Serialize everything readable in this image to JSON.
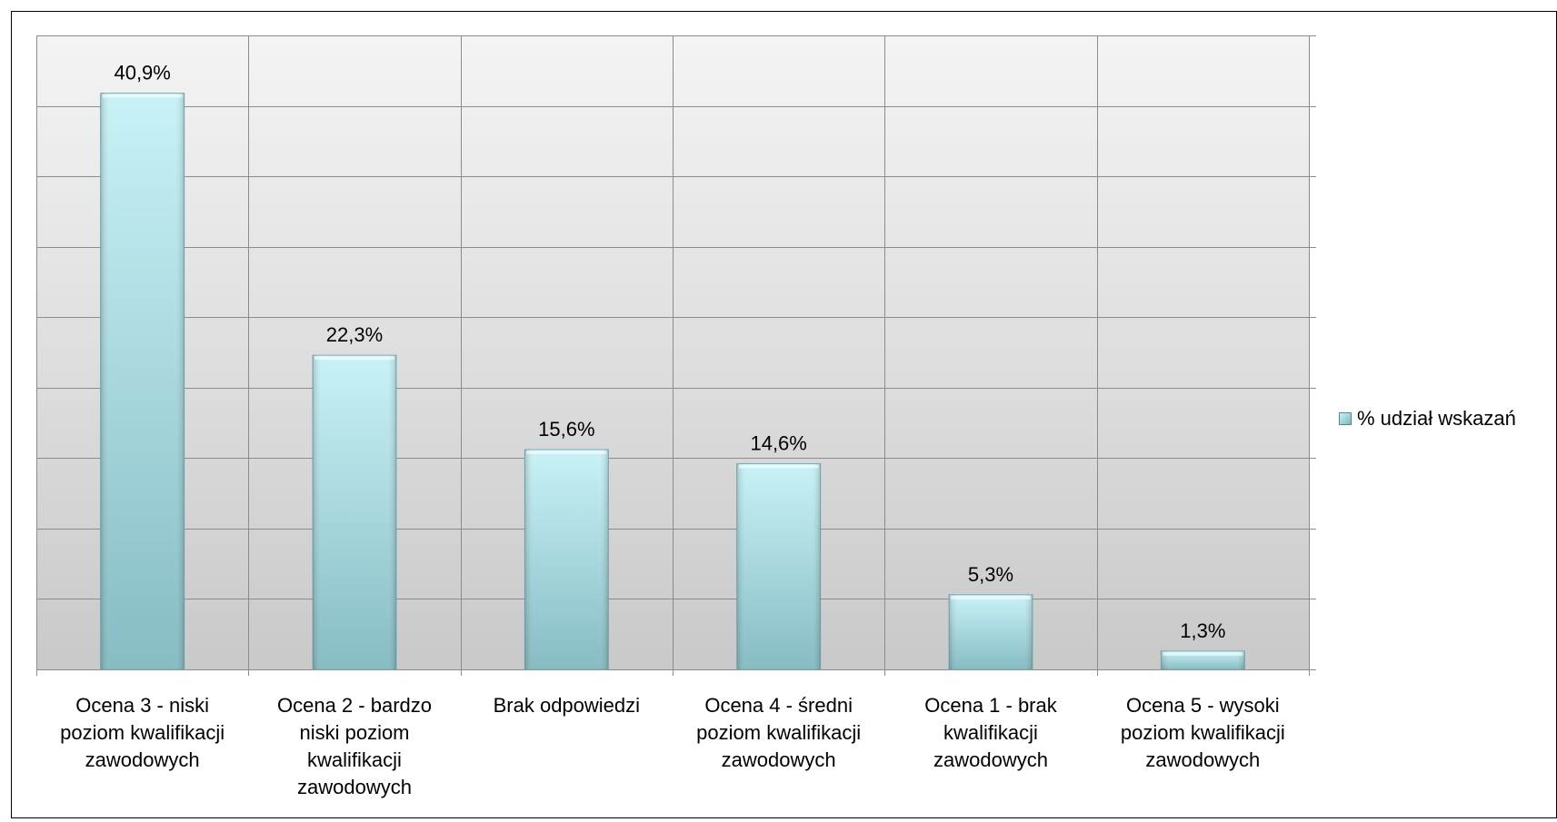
{
  "chart_data": {
    "type": "bar",
    "title": "",
    "xlabel": "",
    "ylabel": "",
    "ylim": [
      0,
      45
    ],
    "grid": true,
    "legend_position": "right",
    "categories": [
      "Ocena 3 - niski poziom kwalifikacji zawodowych",
      "Ocena 2 - bardzo niski poziom kwalifikacji zawodowych",
      "Brak odpowiedzi",
      "Ocena 4 - średni poziom kwalifikacji zawodowych",
      "Ocena 1 - brak kwalifikacji zawodowych",
      "Ocena 5 - wysoki poziom kwalifikacji zawodowych"
    ],
    "tick_labels": [
      [
        "Ocena 3 - niski",
        "poziom kwalifikacji",
        "zawodowych"
      ],
      [
        "Ocena 2 - bardzo",
        "niski poziom",
        "kwalifikacji",
        "zawodowych"
      ],
      [
        "Brak odpowiedzi"
      ],
      [
        "Ocena 4 - średni",
        "poziom kwalifikacji",
        "zawodowych"
      ],
      [
        "Ocena 1 - brak",
        "kwalifikacji",
        "zawodowych"
      ],
      [
        "Ocena 5 - wysoki",
        "poziom kwalifikacji",
        "zawodowych"
      ]
    ],
    "series": [
      {
        "name": "% udział wskazań",
        "values": [
          40.9,
          22.3,
          15.6,
          14.6,
          5.3,
          1.3
        ],
        "data_labels": [
          "40,9%",
          "22,3%",
          "15,6%",
          "14,6%",
          "5,3%",
          "1,3%"
        ],
        "color_light": "#c8f2f6",
        "color_dark": "#86bcc4"
      }
    ]
  },
  "legend": {
    "label": "% udział wskazań"
  },
  "colors": {
    "plot_bg_top": "#f4f4f4",
    "plot_bg_bottom": "#c9c9c9",
    "gridline": "#8c8c8c",
    "axis": "#8c8c8c",
    "frame": "#000000"
  }
}
